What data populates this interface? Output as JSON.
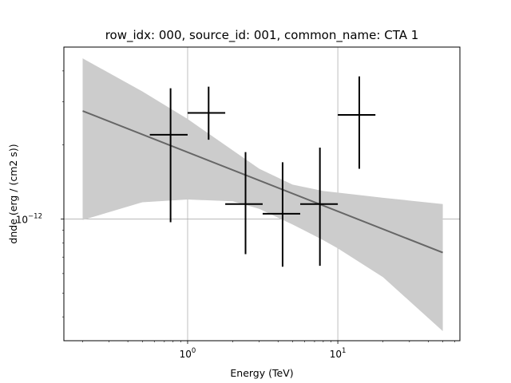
{
  "chart_data": {
    "type": "scatter",
    "title": "row_idx: 000, source_id: 001, common_name: CTA 1",
    "xlabel": "Energy (TeV)",
    "ylabel": "dnde (erg / (cm2 s))",
    "xscale": "log",
    "yscale": "log",
    "xlim": [
      0.15,
      65
    ],
    "ylim": [
      3.2e-13,
      5e-12
    ],
    "grid": true,
    "x_ticks": [
      {
        "value": 1,
        "base": "10",
        "exp": "0"
      },
      {
        "value": 10,
        "base": "10",
        "exp": "1"
      }
    ],
    "y_ticks": [
      {
        "value": 1e-12,
        "base": "10",
        "exp": "−12"
      }
    ],
    "colors": {
      "points": "#000000",
      "model_line": "#666666",
      "band": "#cccccc",
      "grid": "#b0b0b0"
    },
    "flux_points": [
      {
        "x": 0.77,
        "x_lo": 0.56,
        "x_hi": 1.0,
        "y": 2.2e-12,
        "y_lo": 9.7e-13,
        "y_hi": 3.4e-12
      },
      {
        "x": 1.38,
        "x_lo": 1.0,
        "x_hi": 1.78,
        "y": 2.7e-12,
        "y_lo": 2.1e-12,
        "y_hi": 3.45e-12
      },
      {
        "x": 2.43,
        "x_lo": 1.78,
        "x_hi": 3.16,
        "y": 1.15e-12,
        "y_lo": 7.2e-13,
        "y_hi": 1.87e-12
      },
      {
        "x": 4.29,
        "x_lo": 3.16,
        "x_hi": 5.62,
        "y": 1.05e-12,
        "y_lo": 6.4e-13,
        "y_hi": 1.7e-12
      },
      {
        "x": 7.6,
        "x_lo": 5.62,
        "x_hi": 10.0,
        "y": 1.15e-12,
        "y_lo": 6.45e-13,
        "y_hi": 1.95e-12
      },
      {
        "x": 13.9,
        "x_lo": 10.0,
        "x_hi": 17.8,
        "y": 2.65e-12,
        "y_lo": 1.6e-12,
        "y_hi": 3.8e-12
      }
    ],
    "model": {
      "x": [
        0.2,
        50
      ],
      "y": [
        2.75e-12,
        7.3e-13
      ]
    },
    "model_band": {
      "x": [
        0.2,
        0.5,
        1,
        2,
        3,
        5,
        8,
        10,
        20,
        50
      ],
      "upper": [
        4.5e-12,
        3.3e-12,
        2.55e-12,
        1.9e-12,
        1.6e-12,
        1.38e-12,
        1.3e-12,
        1.28e-12,
        1.22e-12,
        1.15e-12
      ],
      "lower": [
        9.9e-13,
        1.17e-12,
        1.2e-12,
        1.18e-12,
        1.1e-12,
        9.5e-13,
        8.2e-13,
        7.6e-13,
        5.8e-13,
        3.5e-13
      ]
    }
  }
}
